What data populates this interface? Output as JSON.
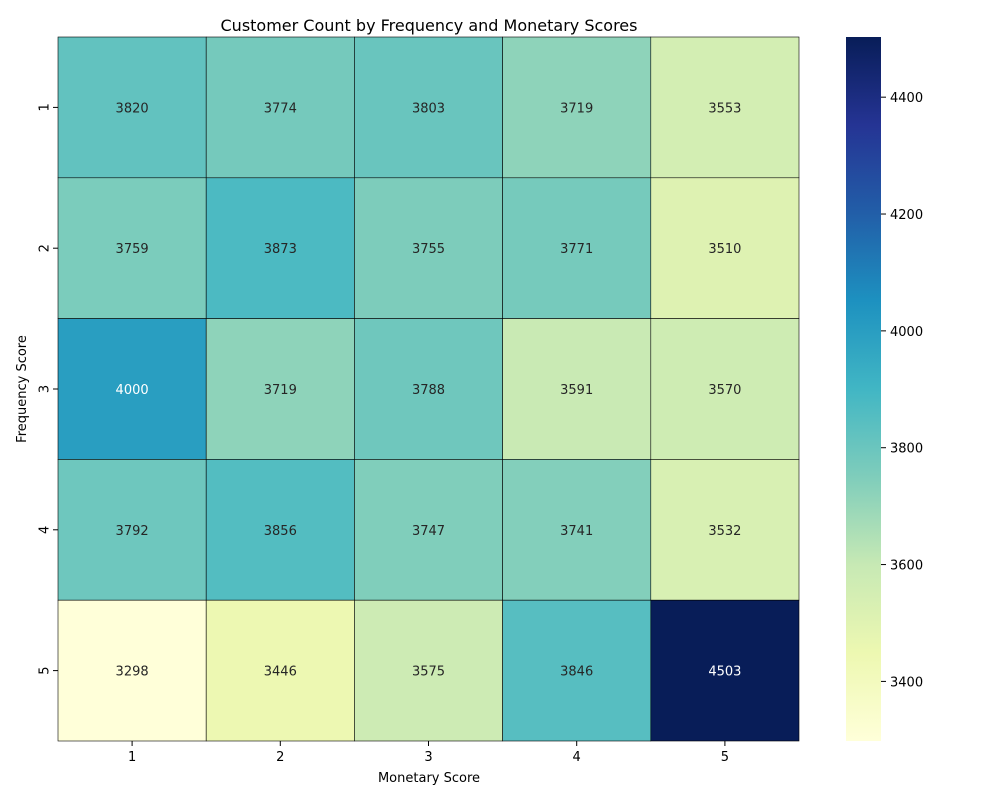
{
  "chart_data": {
    "type": "heatmap",
    "title": "Customer Count by Frequency and Monetary Scores",
    "xlabel": "Monetary Score",
    "ylabel": "Frequency Score",
    "x_categories": [
      "1",
      "2",
      "3",
      "4",
      "5"
    ],
    "y_categories": [
      "1",
      "2",
      "3",
      "4",
      "5"
    ],
    "values": [
      [
        3820,
        3774,
        3803,
        3719,
        3553
      ],
      [
        3759,
        3873,
        3755,
        3771,
        3510
      ],
      [
        4000,
        3719,
        3788,
        3591,
        3570
      ],
      [
        3792,
        3856,
        3747,
        3741,
        3532
      ],
      [
        3298,
        3446,
        3575,
        3846,
        4503
      ]
    ],
    "vmin": 3298,
    "vmax": 4503,
    "colormap": "YlGnBu",
    "colorbar_ticks": [
      "3400",
      "3600",
      "3800",
      "4000",
      "4200",
      "4400"
    ],
    "annotation_dark_color": "#262626",
    "annotation_light_color": "#ffffff"
  }
}
